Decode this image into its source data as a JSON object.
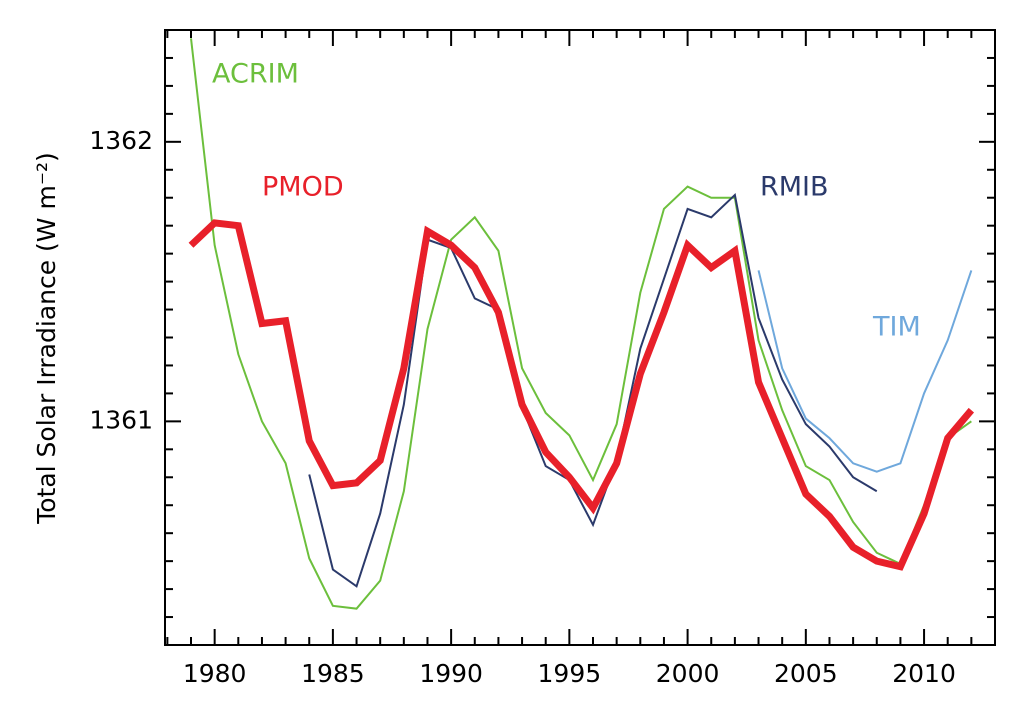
{
  "chart_data": {
    "type": "line",
    "ylabel": "Total Solar Irradiance (W m⁻²)",
    "xlim": [
      1977.9,
      2013
    ],
    "ylim": [
      1360.2,
      1362.4
    ],
    "xticks": [
      1980,
      1985,
      1990,
      1995,
      2000,
      2005,
      2010
    ],
    "yticks": [
      1361,
      1362
    ],
    "xminorticks": [
      1978,
      1979,
      1981,
      1982,
      1983,
      1984,
      1986,
      1987,
      1988,
      1989,
      1991,
      1992,
      1993,
      1994,
      1996,
      1997,
      1998,
      1999,
      2001,
      2002,
      2003,
      2004,
      2006,
      2007,
      2008,
      2009,
      2011,
      2012
    ],
    "yminorticks": [
      1360.3,
      1360.4,
      1360.5,
      1360.6,
      1360.7,
      1360.8,
      1360.9,
      1361.1,
      1361.2,
      1361.3,
      1361.4,
      1361.5,
      1361.6,
      1361.7,
      1361.8,
      1361.9,
      1362.1,
      1362.2,
      1362.3
    ],
    "series": [
      {
        "name": "ACRIM",
        "color": "#6cbf3c",
        "x": [
          1979,
          1980,
          1981,
          1982,
          1983,
          1984,
          1985,
          1986,
          1987,
          1988,
          1989,
          1990,
          1991,
          1992,
          1993,
          1994,
          1995,
          1996,
          1997,
          1998,
          1999,
          2000,
          2001,
          2002,
          2003,
          2004,
          2005,
          2006,
          2007,
          2008,
          2009,
          2010,
          2011,
          2012
        ],
        "values": [
          1362.37,
          1361.63,
          1361.24,
          1361.0,
          1360.85,
          1360.51,
          1360.34,
          1360.33,
          1360.43,
          1360.75,
          1361.33,
          1361.65,
          1361.73,
          1361.61,
          1361.19,
          1361.03,
          1360.95,
          1360.79,
          1360.99,
          1361.46,
          1361.76,
          1361.84,
          1361.8,
          1361.8,
          1361.29,
          1361.04,
          1360.84,
          1360.79,
          1360.64,
          1360.53,
          1360.49,
          1360.7,
          1360.94,
          1361.0
        ]
      },
      {
        "name": "RMIB",
        "color": "#2b3a6b",
        "x": [
          1984,
          1985,
          1986,
          1987,
          1988,
          1989,
          1990,
          1991,
          1992,
          1993,
          1994,
          1995,
          1996,
          1997,
          1998,
          1999,
          2000,
          2001,
          2002,
          2003,
          2004,
          2005,
          2006,
          2007,
          2008
        ],
        "values": [
          1360.81,
          1360.47,
          1360.41,
          1360.67,
          1361.06,
          1361.65,
          1361.62,
          1361.44,
          1361.4,
          1361.05,
          1360.84,
          1360.79,
          1360.63,
          1360.86,
          1361.26,
          1361.51,
          1361.76,
          1361.73,
          1361.81,
          1361.37,
          1361.15,
          1360.99,
          1360.91,
          1360.8,
          1360.75
        ]
      },
      {
        "name": "TIM",
        "color": "#6fa8dc",
        "x": [
          2003,
          2004,
          2005,
          2006,
          2007,
          2008,
          2009,
          2010,
          2011,
          2012
        ],
        "values": [
          1361.54,
          1361.19,
          1361.01,
          1360.94,
          1360.85,
          1360.82,
          1360.85,
          1361.1,
          1361.29,
          1361.54
        ]
      },
      {
        "name": "PMOD",
        "color": "#e8202a",
        "x": [
          1979,
          1980,
          1981,
          1982,
          1983,
          1984,
          1985,
          1986,
          1987,
          1988,
          1989,
          1990,
          1991,
          1992,
          1993,
          1994,
          1995,
          1996,
          1997,
          1998,
          1999,
          2000,
          2001,
          2002,
          2003,
          2004,
          2005,
          2006,
          2007,
          2008,
          2009,
          2010,
          2011,
          2012
        ],
        "values": [
          1361.63,
          1361.71,
          1361.7,
          1361.35,
          1361.36,
          1360.93,
          1360.77,
          1360.78,
          1360.86,
          1361.19,
          1361.68,
          1361.63,
          1361.55,
          1361.39,
          1361.06,
          1360.89,
          1360.8,
          1360.69,
          1360.85,
          1361.17,
          1361.39,
          1361.63,
          1361.55,
          1361.61,
          1361.14,
          1360.94,
          1360.74,
          1360.66,
          1360.55,
          1360.5,
          1360.48,
          1360.67,
          1360.94,
          1361.04
        ]
      }
    ]
  }
}
